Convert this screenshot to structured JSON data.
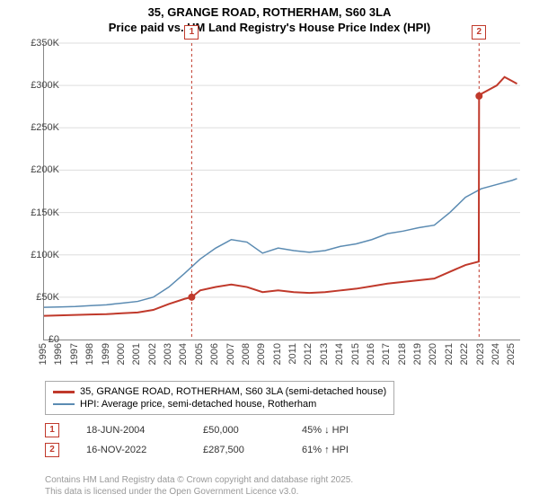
{
  "title_line1": "35, GRANGE ROAD, ROTHERHAM, S60 3LA",
  "title_line2": "Price paid vs. HM Land Registry's House Price Index (HPI)",
  "chart": {
    "type": "line",
    "x_min": 1995,
    "x_max": 2025.5,
    "y_min": 0,
    "y_max": 350000,
    "y_ticks": [
      0,
      50000,
      100000,
      150000,
      200000,
      250000,
      300000,
      350000
    ],
    "y_tick_labels": [
      "£0",
      "£50K",
      "£100K",
      "£150K",
      "£200K",
      "£250K",
      "£300K",
      "£350K"
    ],
    "x_ticks": [
      1995,
      1996,
      1997,
      1998,
      1999,
      2000,
      2001,
      2002,
      2003,
      2004,
      2005,
      2006,
      2007,
      2008,
      2009,
      2010,
      2011,
      2012,
      2013,
      2014,
      2015,
      2016,
      2017,
      2018,
      2019,
      2020,
      2021,
      2022,
      2023,
      2024,
      2025
    ],
    "background_color": "#ffffff",
    "grid_color": "#dddddd",
    "axis_color": "#888888",
    "series_red": {
      "label": "35, GRANGE ROAD, ROTHERHAM, S60 3LA (semi-detached house)",
      "color": "#c0392b",
      "line_width": 2,
      "points": [
        [
          1995,
          28000
        ],
        [
          1996,
          28500
        ],
        [
          1997,
          29000
        ],
        [
          1998,
          29500
        ],
        [
          1999,
          30000
        ],
        [
          2000,
          31000
        ],
        [
          2001,
          32000
        ],
        [
          2002,
          35000
        ],
        [
          2003,
          42000
        ],
        [
          2004,
          48000
        ],
        [
          2004.46,
          50000
        ],
        [
          2005,
          58000
        ],
        [
          2006,
          62000
        ],
        [
          2007,
          65000
        ],
        [
          2008,
          62000
        ],
        [
          2009,
          56000
        ],
        [
          2010,
          58000
        ],
        [
          2011,
          56000
        ],
        [
          2012,
          55000
        ],
        [
          2013,
          56000
        ],
        [
          2014,
          58000
        ],
        [
          2015,
          60000
        ],
        [
          2016,
          63000
        ],
        [
          2017,
          66000
        ],
        [
          2018,
          68000
        ],
        [
          2019,
          70000
        ],
        [
          2020,
          72000
        ],
        [
          2021,
          80000
        ],
        [
          2022,
          88000
        ],
        [
          2022.85,
          92000
        ],
        [
          2022.87,
          287500
        ],
        [
          2023,
          290000
        ],
        [
          2023.5,
          295000
        ],
        [
          2024,
          300000
        ],
        [
          2024.5,
          310000
        ],
        [
          2025,
          305000
        ],
        [
          2025.3,
          302000
        ]
      ]
    },
    "series_blue": {
      "label": "HPI: Average price, semi-detached house, Rotherham",
      "color": "#5b8bb2",
      "line_width": 1.5,
      "points": [
        [
          1995,
          38000
        ],
        [
          1996,
          38500
        ],
        [
          1997,
          39000
        ],
        [
          1998,
          40000
        ],
        [
          1999,
          41000
        ],
        [
          2000,
          43000
        ],
        [
          2001,
          45000
        ],
        [
          2002,
          50000
        ],
        [
          2003,
          62000
        ],
        [
          2004,
          78000
        ],
        [
          2005,
          95000
        ],
        [
          2006,
          108000
        ],
        [
          2007,
          118000
        ],
        [
          2008,
          115000
        ],
        [
          2009,
          102000
        ],
        [
          2010,
          108000
        ],
        [
          2011,
          105000
        ],
        [
          2012,
          103000
        ],
        [
          2013,
          105000
        ],
        [
          2014,
          110000
        ],
        [
          2015,
          113000
        ],
        [
          2016,
          118000
        ],
        [
          2017,
          125000
        ],
        [
          2018,
          128000
        ],
        [
          2019,
          132000
        ],
        [
          2020,
          135000
        ],
        [
          2021,
          150000
        ],
        [
          2022,
          168000
        ],
        [
          2023,
          178000
        ],
        [
          2024,
          183000
        ],
        [
          2025,
          188000
        ],
        [
          2025.3,
          190000
        ]
      ]
    },
    "markers": [
      {
        "num": "1",
        "x": 2004.46,
        "y": 50000
      },
      {
        "num": "2",
        "x": 2022.87,
        "y": 287500
      }
    ]
  },
  "legend": {
    "border_color": "#aaaaaa"
  },
  "transactions": [
    {
      "num": "1",
      "date": "18-JUN-2004",
      "price": "£50,000",
      "pct": "45% ↓ HPI"
    },
    {
      "num": "2",
      "date": "16-NOV-2022",
      "price": "£287,500",
      "pct": "61% ↑ HPI"
    }
  ],
  "footer_line1": "Contains HM Land Registry data © Crown copyright and database right 2025.",
  "footer_line2": "This data is licensed under the Open Government Licence v3.0."
}
